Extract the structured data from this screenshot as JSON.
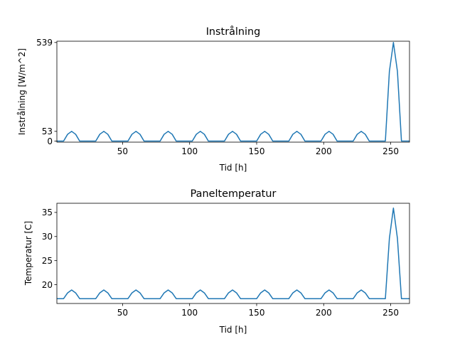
{
  "chart_data": [
    {
      "type": "line",
      "title": "Instrålning",
      "xlabel": "Tid [h]",
      "ylabel": "Instrålning [W/m^2]",
      "xlim": [
        1,
        264
      ],
      "ylim": [
        -6,
        546
      ],
      "xticks": [
        50,
        100,
        150,
        200,
        250
      ],
      "yticks": [
        0,
        53,
        539
      ],
      "grid": false,
      "series": [
        {
          "color": "#1f77b4",
          "pattern": {
            "base": 0,
            "daily_peak": 53,
            "period_h": 24,
            "first_peak_h": 12,
            "daylight_h": 12
          },
          "points": [
            [
              1,
              0
            ],
            [
              6,
              0
            ],
            [
              9,
              37
            ],
            [
              12,
              53
            ],
            [
              15,
              37
            ],
            [
              18,
              0
            ],
            [
              30,
              0
            ],
            [
              33,
              37
            ],
            [
              36,
              53
            ],
            [
              39,
              37
            ],
            [
              42,
              0
            ],
            [
              54,
              0
            ],
            [
              57,
              37
            ],
            [
              60,
              53
            ],
            [
              63,
              37
            ],
            [
              66,
              0
            ],
            [
              78,
              0
            ],
            [
              81,
              37
            ],
            [
              84,
              53
            ],
            [
              87,
              37
            ],
            [
              90,
              0
            ],
            [
              102,
              0
            ],
            [
              105,
              37
            ],
            [
              108,
              53
            ],
            [
              111,
              37
            ],
            [
              114,
              0
            ],
            [
              126,
              0
            ],
            [
              129,
              37
            ],
            [
              132,
              53
            ],
            [
              135,
              37
            ],
            [
              138,
              0
            ],
            [
              150,
              0
            ],
            [
              153,
              37
            ],
            [
              156,
              53
            ],
            [
              159,
              37
            ],
            [
              162,
              0
            ],
            [
              174,
              0
            ],
            [
              177,
              37
            ],
            [
              180,
              53
            ],
            [
              183,
              37
            ],
            [
              186,
              0
            ],
            [
              198,
              0
            ],
            [
              201,
              37
            ],
            [
              204,
              53
            ],
            [
              207,
              37
            ],
            [
              210,
              0
            ],
            [
              222,
              0
            ],
            [
              225,
              37
            ],
            [
              228,
              53
            ],
            [
              231,
              37
            ],
            [
              234,
              0
            ],
            [
              246,
              0
            ],
            [
              249,
              381
            ],
            [
              252,
              539
            ],
            [
              255,
              381
            ],
            [
              258,
              0
            ],
            [
              264,
              0
            ]
          ]
        }
      ]
    },
    {
      "type": "line",
      "title": "Paneltemperatur",
      "xlabel": "Tid [h]",
      "ylabel": "Temperatur [C]",
      "xlim": [
        1,
        264
      ],
      "ylim": [
        16.1,
        36.9
      ],
      "xticks": [
        50,
        100,
        150,
        200,
        250
      ],
      "yticks": [
        20,
        25,
        30,
        35
      ],
      "grid": false,
      "series": [
        {
          "color": "#1f77b4",
          "pattern": {
            "base": 17.1,
            "daily_peak": 18.9,
            "period_h": 24,
            "first_peak_h": 12,
            "daylight_h": 12
          },
          "points": [
            [
              1,
              17.1
            ],
            [
              6,
              17.1
            ],
            [
              9,
              18.3
            ],
            [
              12,
              18.9
            ],
            [
              15,
              18.3
            ],
            [
              18,
              17.1
            ],
            [
              30,
              17.1
            ],
            [
              33,
              18.3
            ],
            [
              36,
              18.9
            ],
            [
              39,
              18.3
            ],
            [
              42,
              17.1
            ],
            [
              54,
              17.1
            ],
            [
              57,
              18.3
            ],
            [
              60,
              18.9
            ],
            [
              63,
              18.3
            ],
            [
              66,
              17.1
            ],
            [
              78,
              17.1
            ],
            [
              81,
              18.3
            ],
            [
              84,
              18.9
            ],
            [
              87,
              18.3
            ],
            [
              90,
              17.1
            ],
            [
              102,
              17.1
            ],
            [
              105,
              18.3
            ],
            [
              108,
              18.9
            ],
            [
              111,
              18.3
            ],
            [
              114,
              17.1
            ],
            [
              126,
              17.1
            ],
            [
              129,
              18.3
            ],
            [
              132,
              18.9
            ],
            [
              135,
              18.3
            ],
            [
              138,
              17.1
            ],
            [
              150,
              17.1
            ],
            [
              153,
              18.3
            ],
            [
              156,
              18.9
            ],
            [
              159,
              18.3
            ],
            [
              162,
              17.1
            ],
            [
              174,
              17.1
            ],
            [
              177,
              18.3
            ],
            [
              180,
              18.9
            ],
            [
              183,
              18.3
            ],
            [
              186,
              17.1
            ],
            [
              198,
              17.1
            ],
            [
              201,
              18.3
            ],
            [
              204,
              18.9
            ],
            [
              207,
              18.3
            ],
            [
              210,
              17.1
            ],
            [
              222,
              17.1
            ],
            [
              225,
              18.3
            ],
            [
              228,
              18.9
            ],
            [
              231,
              18.3
            ],
            [
              234,
              17.1
            ],
            [
              246,
              17.1
            ],
            [
              249,
              29.6
            ],
            [
              252,
              35.9
            ],
            [
              255,
              29.6
            ],
            [
              258,
              17.1
            ],
            [
              264,
              17.1
            ]
          ]
        }
      ]
    }
  ]
}
